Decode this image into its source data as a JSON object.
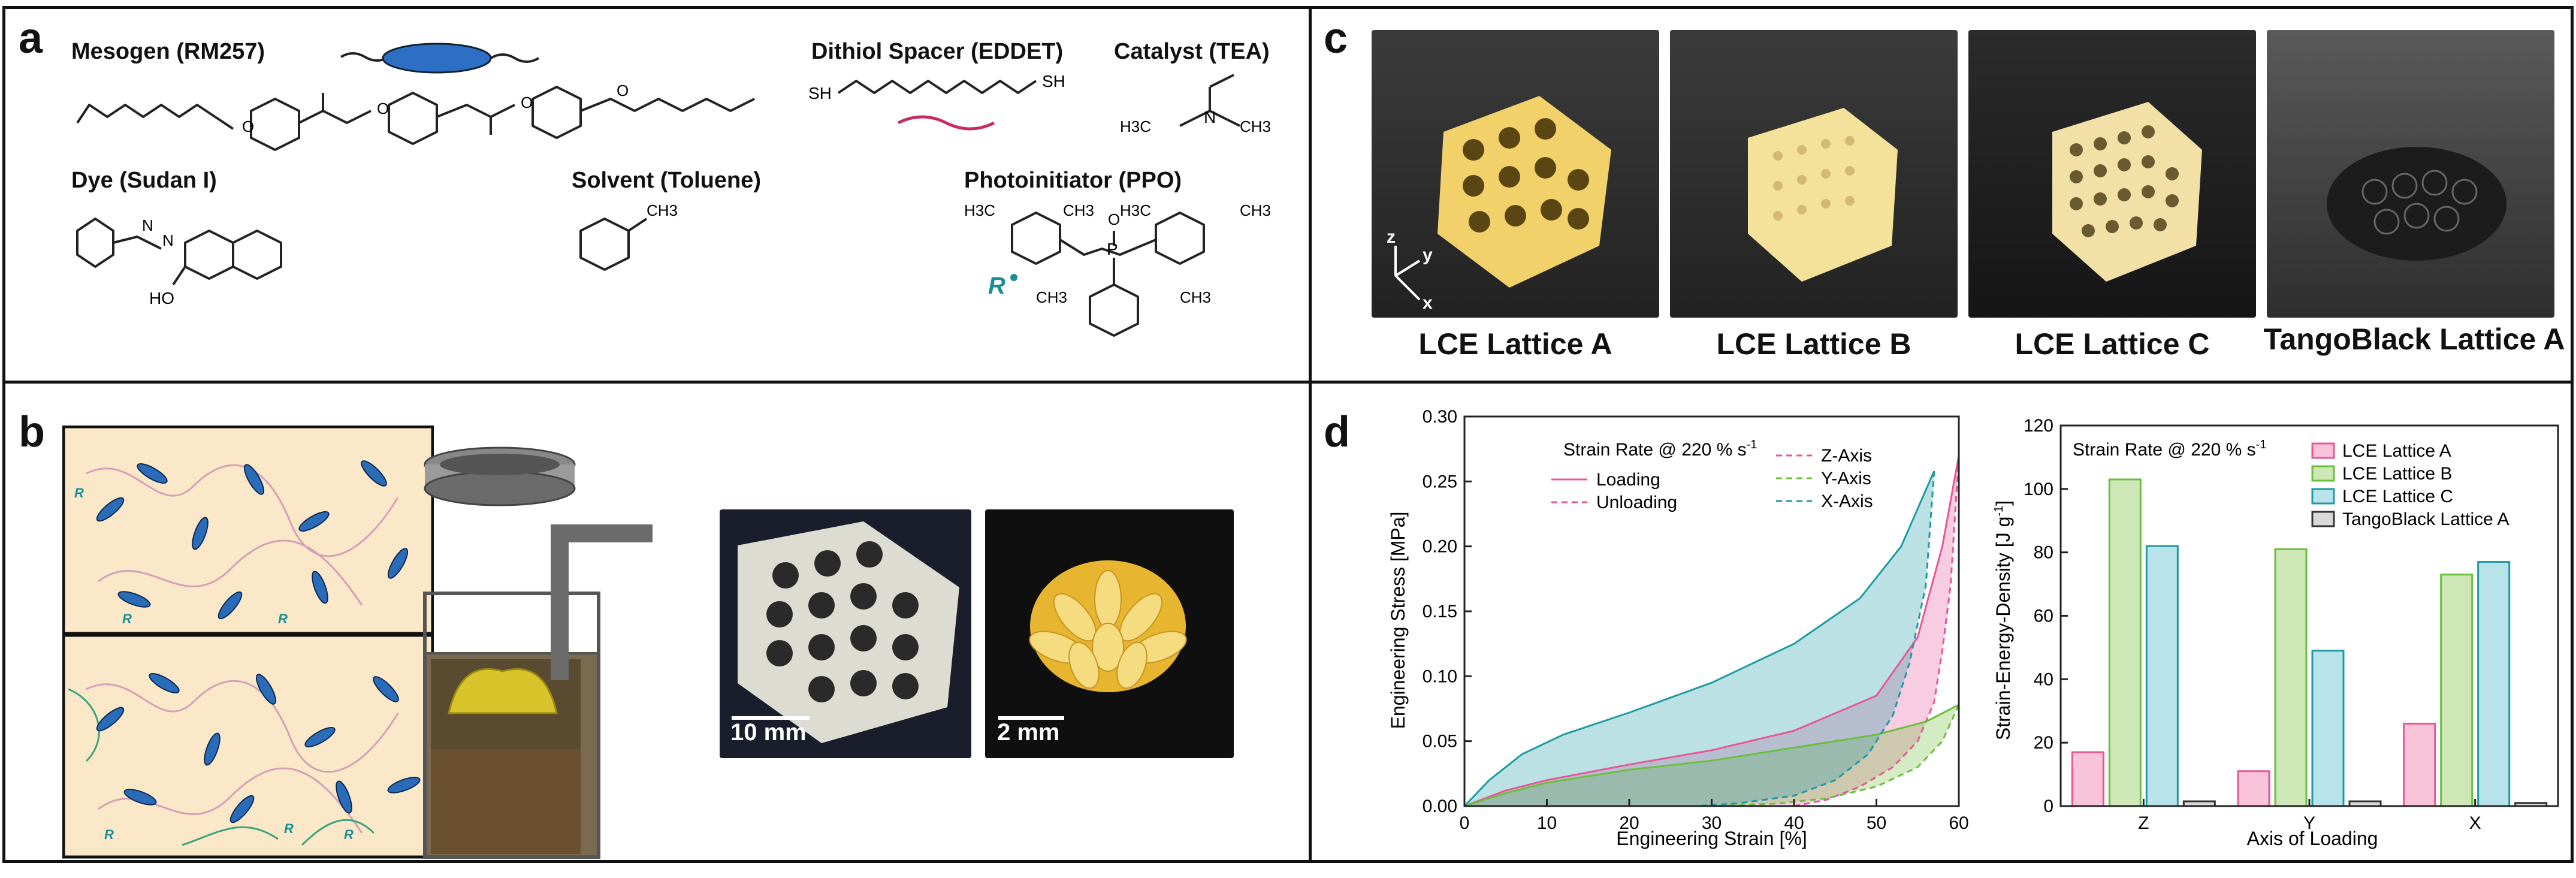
{
  "panels": {
    "a": "a",
    "b": "b",
    "c": "c",
    "d": "d"
  },
  "panel_a": {
    "mesogen": "Mesogen (RM257)",
    "spacer": "Dithiol Spacer (EDDET)",
    "catalyst": "Catalyst (TEA)",
    "dye": "Dye (Sudan I)",
    "solvent": "Solvent (Toluene)",
    "photoinitiator": "Photoinitiator (PPO)",
    "atoms": {
      "SH": "SH",
      "O": "O",
      "N": "N",
      "HO": "HO",
      "P": "P",
      "CH3": "CH3",
      "H3C": "H3C",
      "R": "R"
    }
  },
  "panel_b": {
    "scale1": "10 mm",
    "scale2": "2 mm",
    "Rlabel": "R"
  },
  "panel_c": {
    "captions": [
      "LCE Lattice A",
      "LCE Lattice B",
      "LCE Lattice C",
      "TangoBlack Lattice A"
    ],
    "axes": {
      "z": "z",
      "y": "y",
      "x": "x"
    }
  },
  "colors": {
    "pink": "#e8559a",
    "green": "#6cbf3c",
    "teal": "#1e9aa4",
    "black": "#333333"
  },
  "chart_data": [
    {
      "type": "line",
      "title": "",
      "xlabel": "Engineering Strain [%]",
      "ylabel": "Engineering Stress [MPa]",
      "xlim": [
        0,
        60
      ],
      "ylim": [
        0,
        0.3
      ],
      "xticks": [
        "0",
        "10",
        "20",
        "30",
        "40",
        "50",
        "60"
      ],
      "yticks": [
        "0.00",
        "0.05",
        "0.10",
        "0.15",
        "0.20",
        "0.25",
        "0.30"
      ],
      "annotation": "Strain Rate @ 220 % s",
      "annotation_sup": "-1",
      "legend_style": [
        {
          "name": "Loading",
          "dash": "solid"
        },
        {
          "name": "Unloading",
          "dash": "dashed"
        }
      ],
      "series": [
        {
          "name": "Z-Axis",
          "color": "#e8559a",
          "loading": [
            [
              0,
              0
            ],
            [
              5,
              0.012
            ],
            [
              10,
              0.02
            ],
            [
              20,
              0.032
            ],
            [
              30,
              0.043
            ],
            [
              40,
              0.058
            ],
            [
              50,
              0.085
            ],
            [
              55,
              0.13
            ],
            [
              58,
              0.2
            ],
            [
              60,
              0.27
            ]
          ],
          "unloading": [
            [
              60,
              0.27
            ],
            [
              59,
              0.17
            ],
            [
              58,
              0.12
            ],
            [
              57,
              0.08
            ],
            [
              55,
              0.05
            ],
            [
              52,
              0.03
            ],
            [
              48,
              0.015
            ],
            [
              44,
              0.005
            ],
            [
              40,
              0
            ]
          ]
        },
        {
          "name": "Y-Axis",
          "color": "#6cbf3c",
          "loading": [
            [
              0,
              0
            ],
            [
              5,
              0.01
            ],
            [
              10,
              0.018
            ],
            [
              20,
              0.028
            ],
            [
              30,
              0.035
            ],
            [
              40,
              0.045
            ],
            [
              50,
              0.055
            ],
            [
              56,
              0.065
            ],
            [
              60,
              0.078
            ]
          ],
          "unloading": [
            [
              60,
              0.078
            ],
            [
              58,
              0.05
            ],
            [
              55,
              0.03
            ],
            [
              50,
              0.015
            ],
            [
              44,
              0.006
            ],
            [
              38,
              0.002
            ],
            [
              30,
              0
            ]
          ]
        },
        {
          "name": "X-Axis",
          "color": "#1e9aa4",
          "loading": [
            [
              0,
              0
            ],
            [
              3,
              0.02
            ],
            [
              7,
              0.04
            ],
            [
              12,
              0.055
            ],
            [
              20,
              0.072
            ],
            [
              30,
              0.095
            ],
            [
              40,
              0.125
            ],
            [
              48,
              0.16
            ],
            [
              53,
              0.2
            ],
            [
              57,
              0.258
            ]
          ],
          "unloading": [
            [
              57,
              0.258
            ],
            [
              56,
              0.17
            ],
            [
              54,
              0.11
            ],
            [
              52,
              0.07
            ],
            [
              49,
              0.04
            ],
            [
              45,
              0.02
            ],
            [
              40,
              0.008
            ],
            [
              33,
              0.002
            ],
            [
              28,
              0
            ]
          ]
        }
      ]
    },
    {
      "type": "bar",
      "title": "",
      "xlabel": "Axis of Loading",
      "ylabel": "Strain-Energy-Density [J g",
      "ylabel_sup": "-1",
      "ylabel_end": "]",
      "categories": [
        "Z",
        "Y",
        "X"
      ],
      "ylim": [
        0,
        120
      ],
      "yticks": [
        "0",
        "20",
        "40",
        "60",
        "80",
        "100",
        "120"
      ],
      "annotation": "Strain Rate @ 220 % s",
      "annotation_sup": "-1",
      "series": [
        {
          "name": "LCE Lattice A",
          "color": "#f9c4d9",
          "edge": "#e8559a",
          "values": [
            17,
            11,
            26
          ]
        },
        {
          "name": "LCE Lattice B",
          "color": "#cde7b6",
          "edge": "#6cbf3c",
          "values": [
            103,
            81,
            73
          ]
        },
        {
          "name": "LCE Lattice C",
          "color": "#b9e3ea",
          "edge": "#1e9aa4",
          "values": [
            82,
            49,
            77
          ]
        },
        {
          "name": "TangoBlack Lattice A",
          "color": "#d9d9d9",
          "edge": "#333333",
          "values": [
            1.5,
            1.5,
            1
          ]
        }
      ]
    }
  ]
}
